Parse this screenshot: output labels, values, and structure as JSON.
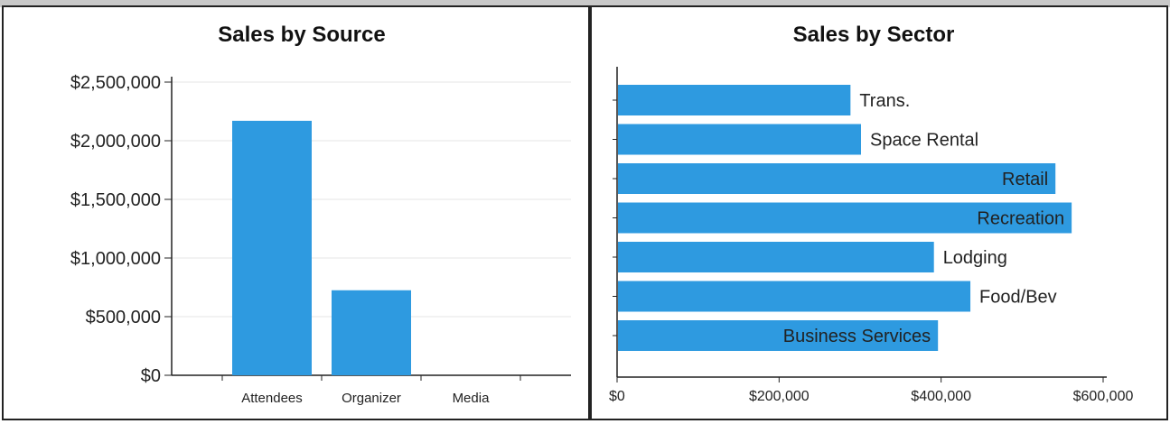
{
  "chart_data": [
    {
      "type": "bar",
      "title": "Sales by Source",
      "categories": [
        "Attendees",
        "Organizer",
        "Media"
      ],
      "values": [
        2170000,
        725000,
        0
      ],
      "ylim": [
        0,
        2500000
      ],
      "yticks": [
        "$0",
        "$500,000",
        "$1,000,000",
        "$1,500,000",
        "$2,000,000",
        "$2,500,000"
      ],
      "ytick_values": [
        0,
        500000,
        1000000,
        1500000,
        2000000,
        2500000
      ],
      "grid": true,
      "color": "#2e9ae0"
    },
    {
      "type": "bar",
      "orientation": "horizontal",
      "title": "Sales by Sector",
      "categories": [
        "Trans.",
        "Space Rental",
        "Retail",
        "Recreation",
        "Lodging",
        "Food/Bev",
        "Business Services"
      ],
      "values": [
        287000,
        300000,
        540000,
        560000,
        390000,
        435000,
        395000
      ],
      "xlim": [
        0,
        600000
      ],
      "xticks": [
        "$0",
        "$200,000",
        "$400,000",
        "$600,000"
      ],
      "xtick_values": [
        0,
        200000,
        400000,
        600000
      ],
      "grid": false,
      "color": "#2e9ae0"
    }
  ]
}
